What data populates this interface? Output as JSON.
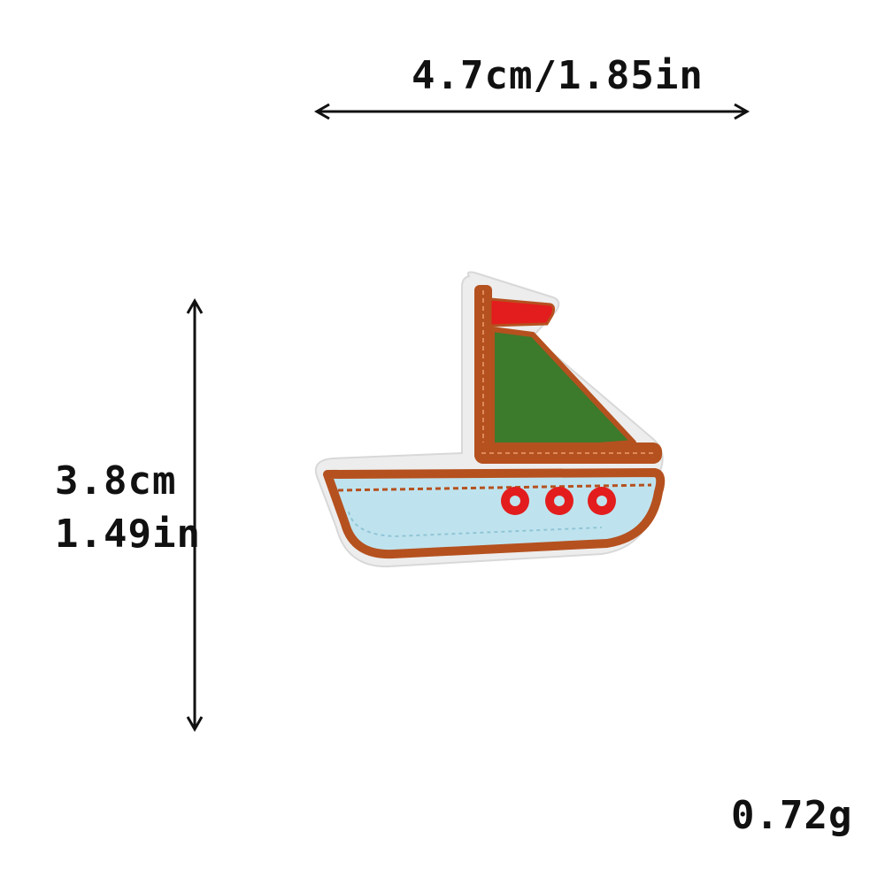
{
  "dimensions": {
    "width_label": "4.7cm/1.85in",
    "height_cm": "3.8cm",
    "height_in": "1.49in",
    "weight": "0.72g"
  },
  "product": {
    "subject": "embroidered sailboat patch",
    "icon": "sailboat-patch-icon",
    "colors": {
      "border": "#b5511f",
      "sail": "#3c7a2c",
      "flag": "#e31d1d",
      "hull": "#bfe3ee",
      "portholes": "#e31d1d",
      "backing": "#ededed"
    }
  }
}
